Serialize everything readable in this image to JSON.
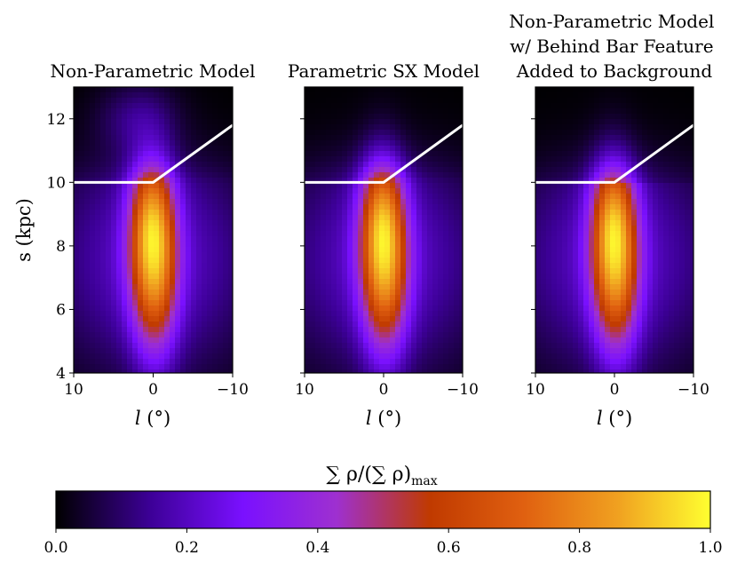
{
  "chart_data": [
    {
      "type": "heatmap",
      "title": "Non-Parametric Model",
      "xlabel": "l (°)",
      "ylabel": "s (kpc)",
      "xlim": [
        10,
        -10
      ],
      "ylim": [
        4,
        13
      ],
      "xticks": [
        {
          "value": 10,
          "label": "10"
        },
        {
          "value": 0,
          "label": "0"
        },
        {
          "value": -10,
          "label": "−10"
        }
      ],
      "yticks": [
        {
          "value": 4,
          "label": "4"
        },
        {
          "value": 6,
          "label": "6"
        },
        {
          "value": 8,
          "label": "8"
        },
        {
          "value": 10,
          "label": "10"
        },
        {
          "value": 12,
          "label": "12"
        }
      ],
      "peak": {
        "l": 0,
        "s": 7.9
      },
      "behind_bar_feature": {
        "l": 2,
        "s": 12.0,
        "relative_density": 0.12
      },
      "boundary_line": {
        "l": [
          10,
          0,
          -10
        ],
        "s": [
          10.0,
          10.0,
          11.8
        ]
      }
    },
    {
      "type": "heatmap",
      "title": "Parametric SX Model",
      "xlabel": "l (°)",
      "xlim": [
        10,
        -10
      ],
      "ylim": [
        4,
        13
      ],
      "xticks": [
        {
          "value": 10,
          "label": "10"
        },
        {
          "value": 0,
          "label": "0"
        },
        {
          "value": -10,
          "label": "−10"
        }
      ],
      "peak": {
        "l": 0,
        "s": 7.9
      },
      "boundary_line": {
        "l": [
          10,
          0,
          -10
        ],
        "s": [
          10.0,
          10.0,
          11.8
        ]
      }
    },
    {
      "type": "heatmap",
      "title": "Non-Parametric Model w/ Behind Bar Feature Added to Background",
      "title_lines": [
        "Non-Parametric Model",
        "w/ Behind Bar Feature",
        "Added to Background"
      ],
      "xlabel": "l (°)",
      "xlim": [
        10,
        -10
      ],
      "ylim": [
        4,
        13
      ],
      "xticks": [
        {
          "value": 10,
          "label": "10"
        },
        {
          "value": 0,
          "label": "0"
        },
        {
          "value": -10,
          "label": "−10"
        }
      ],
      "peak": {
        "l": 0,
        "s": 7.9
      },
      "boundary_line": {
        "l": [
          10,
          0,
          -10
        ],
        "s": [
          10.0,
          10.0,
          11.8
        ]
      }
    }
  ],
  "colorbar": {
    "label": "∑ρ/(∑ρ)max",
    "label_main": "∑ ρ/(∑ ρ)",
    "label_sub": "max",
    "range": [
      0.0,
      1.0
    ],
    "colormap": "gnuplot2",
    "ticks": [
      {
        "value": 0.0,
        "label": "0.0"
      },
      {
        "value": 0.2,
        "label": "0.2"
      },
      {
        "value": 0.4,
        "label": "0.4"
      },
      {
        "value": 0.6,
        "label": "0.6"
      },
      {
        "value": 0.8,
        "label": "0.8"
      },
      {
        "value": 1.0,
        "label": "1.0"
      }
    ],
    "colors": [
      "#000000",
      "#3c0096",
      "#7a10ff",
      "#9e30d0",
      "#c03a00",
      "#e06010",
      "#f0a020",
      "#ffff30"
    ]
  }
}
